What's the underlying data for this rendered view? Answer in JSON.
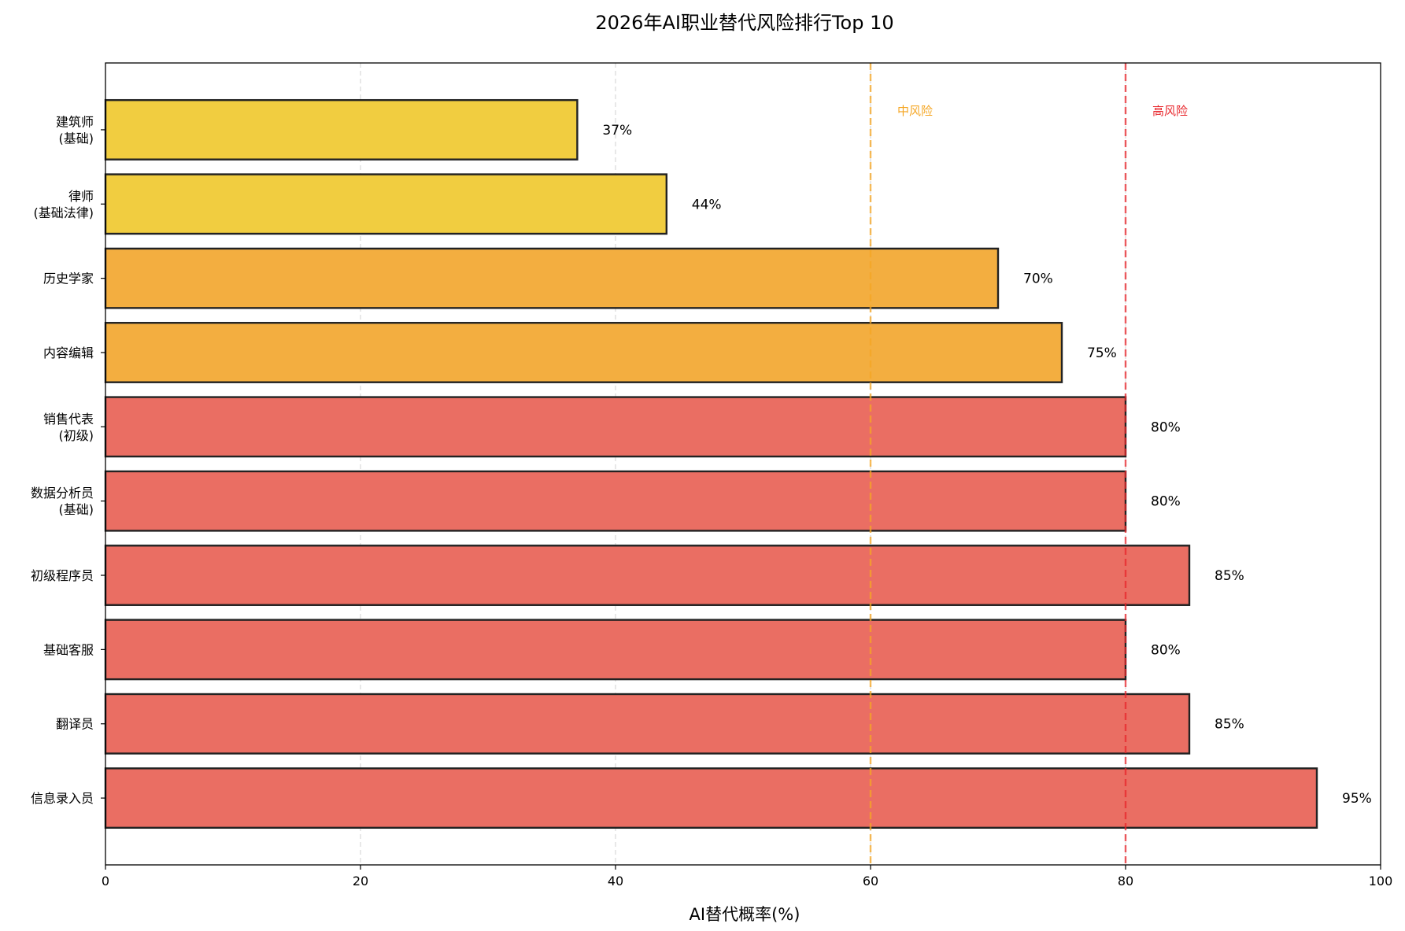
{
  "chart_data": {
    "type": "bar",
    "orientation": "horizontal",
    "title": "2026年AI职业替代风险排行Top 10",
    "xlabel": "AI替代概率(%)",
    "ylabel": "",
    "xlim": [
      0,
      100
    ],
    "xticks": [
      0,
      20,
      40,
      60,
      80,
      100
    ],
    "grid": "vertical dashed",
    "categories": [
      [
        "建筑师",
        "(基础)"
      ],
      [
        "律师",
        "(基础法律)"
      ],
      [
        "历史学家"
      ],
      [
        "内容编辑"
      ],
      [
        "销售代表",
        "(初级)"
      ],
      [
        "数据分析员",
        "(基础)"
      ],
      [
        "初级程序员"
      ],
      [
        "基础客服"
      ],
      [
        "翻译员"
      ],
      [
        "信息录入员"
      ]
    ],
    "values": [
      37,
      44,
      70,
      75,
      80,
      80,
      85,
      80,
      85,
      95
    ],
    "value_labels": [
      "37%",
      "44%",
      "70%",
      "75%",
      "80%",
      "80%",
      "85%",
      "80%",
      "85%",
      "95%"
    ],
    "bar_colors": [
      "#f1cd40",
      "#f1cd40",
      "#f3ae40",
      "#f3ae40",
      "#ea6e63",
      "#ea6e63",
      "#ea6e63",
      "#ea6e63",
      "#ea6e63",
      "#ea6e63"
    ],
    "thresholds": [
      {
        "value": 60,
        "label": "中风险",
        "color": "#f5a623"
      },
      {
        "value": 80,
        "label": "高风险",
        "color": "#e8262b"
      }
    ]
  }
}
